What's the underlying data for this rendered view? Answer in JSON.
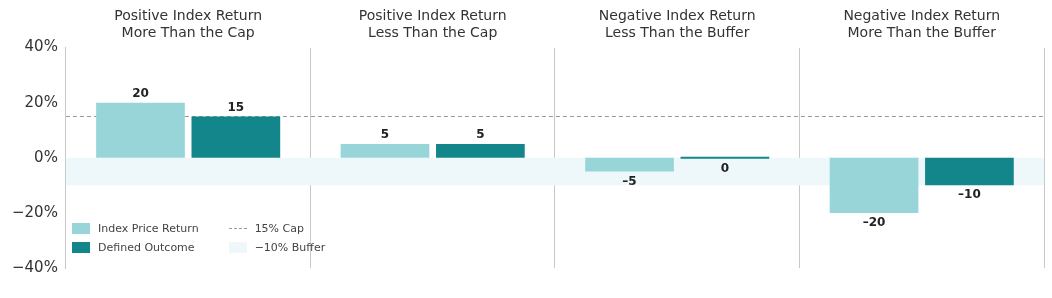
{
  "chart_data": {
    "type": "bar",
    "categories": [
      "Positive Index Return\nMore Than the Cap",
      "Positive Index Return\nLess Than the Cap",
      "Negative Index Return\nLess Than the Buffer",
      "Negative Index Return\nMore Than the Buffer"
    ],
    "series": [
      {
        "name": "Index Price Return",
        "color": "#98d5d8",
        "values": [
          20,
          5,
          -5,
          -20
        ],
        "value_labels": [
          "20",
          "5",
          "–5",
          "–20"
        ]
      },
      {
        "name": "Defined Outcome",
        "color": "#12868a",
        "values": [
          15,
          5,
          0,
          -10
        ],
        "value_labels": [
          "15",
          "5",
          "0",
          "–10"
        ]
      }
    ],
    "ylim": [
      -40,
      40
    ],
    "yticks": [
      {
        "value": -40,
        "label": "−40%"
      },
      {
        "value": -20,
        "label": "−20%"
      },
      {
        "value": 0,
        "label": "0%"
      },
      {
        "value": 20,
        "label": "20%"
      },
      {
        "value": 40,
        "label": "40%"
      }
    ],
    "ref_lines": [
      {
        "axis": "y",
        "value": 15,
        "label": "15% Cap",
        "color": "#9a9a9a",
        "line_style": "dashed"
      }
    ],
    "bands": [
      {
        "axis": "y",
        "from": -10,
        "to": 0,
        "label": "−10% Buffer",
        "color": "#eef7f9"
      }
    ],
    "grid": "x",
    "legend": "bottom left"
  }
}
